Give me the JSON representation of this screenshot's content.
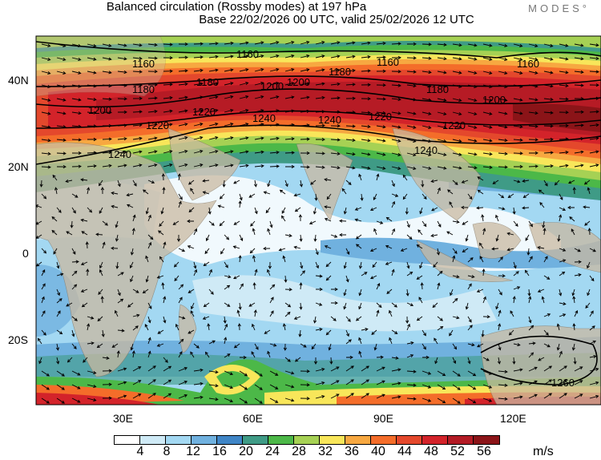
{
  "title": {
    "line1": "Balanced circulation (Rossby modes) at 197 hPa",
    "line2": "Base 22/02/2026 00 UTC, valid 25/02/2026 12 UTC"
  },
  "logo": "MODES°",
  "map": {
    "lat_labels": [
      "40N",
      "20N",
      "0",
      "20S"
    ],
    "lon_labels": [
      "30E",
      "60E",
      "90E",
      "120E"
    ],
    "contour_labels": [
      "1160",
      "1160",
      "1160",
      "1160",
      "1180",
      "1180",
      "1180",
      "1180",
      "1200",
      "1200",
      "1200",
      "1200",
      "1220",
      "1220",
      "1220",
      "1220",
      "1240",
      "1240",
      "1240",
      "1240",
      "1260"
    ]
  },
  "colorbar": {
    "ticks": [
      "4",
      "8",
      "12",
      "16",
      "20",
      "24",
      "28",
      "32",
      "36",
      "40",
      "44",
      "48",
      "52",
      "56"
    ],
    "unit": "m/s",
    "colors": [
      "#ffffff",
      "#cfeaf6",
      "#a3d8f2",
      "#70b1df",
      "#3f85c6",
      "#3f9b86",
      "#4cb848",
      "#a6d154",
      "#f8e65a",
      "#f7a841",
      "#f46d2a",
      "#e4482c",
      "#d3232a",
      "#b31b25",
      "#8b1418"
    ]
  }
}
